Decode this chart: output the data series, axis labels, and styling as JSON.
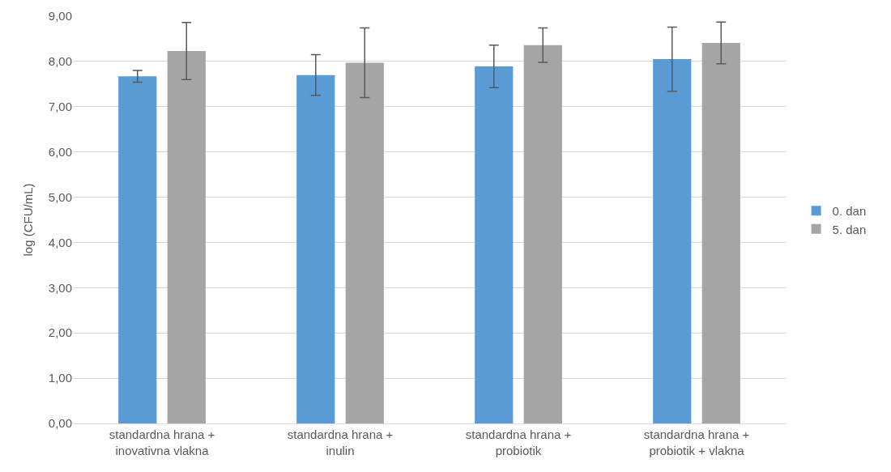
{
  "chart_data": {
    "type": "bar",
    "ylabel": "log (CFU/mL)",
    "categories": [
      "standardna hrana +\ninovativna vlakna",
      "standardna hrana +\ninulin",
      "standardna hrana +\nprobiotik",
      "standardna hrana +\nprobiotik + vlakna"
    ],
    "series": [
      {
        "name": "0. dan",
        "color": "#5b9bd5",
        "values": [
          7.67,
          7.7,
          7.89,
          8.05
        ],
        "errors": [
          0.13,
          0.45,
          0.47,
          0.71
        ]
      },
      {
        "name": "5. dan",
        "color": "#a5a5a5",
        "values": [
          8.23,
          7.97,
          8.36,
          8.41
        ],
        "errors": [
          0.63,
          0.77,
          0.38,
          0.46
        ]
      }
    ],
    "ylim": [
      0,
      9
    ],
    "yticks": [
      {
        "value": 0,
        "label": "0,00"
      },
      {
        "value": 1,
        "label": "1,00"
      },
      {
        "value": 2,
        "label": "2,00"
      },
      {
        "value": 3,
        "label": "3,00"
      },
      {
        "value": 4,
        "label": "4,00"
      },
      {
        "value": 5,
        "label": "5,00"
      },
      {
        "value": 6,
        "label": "6,00"
      },
      {
        "value": 7,
        "label": "7,00"
      },
      {
        "value": 8,
        "label": "8,00"
      },
      {
        "value": 9,
        "label": "9,00"
      }
    ],
    "grid": "y",
    "legend": "right"
  }
}
